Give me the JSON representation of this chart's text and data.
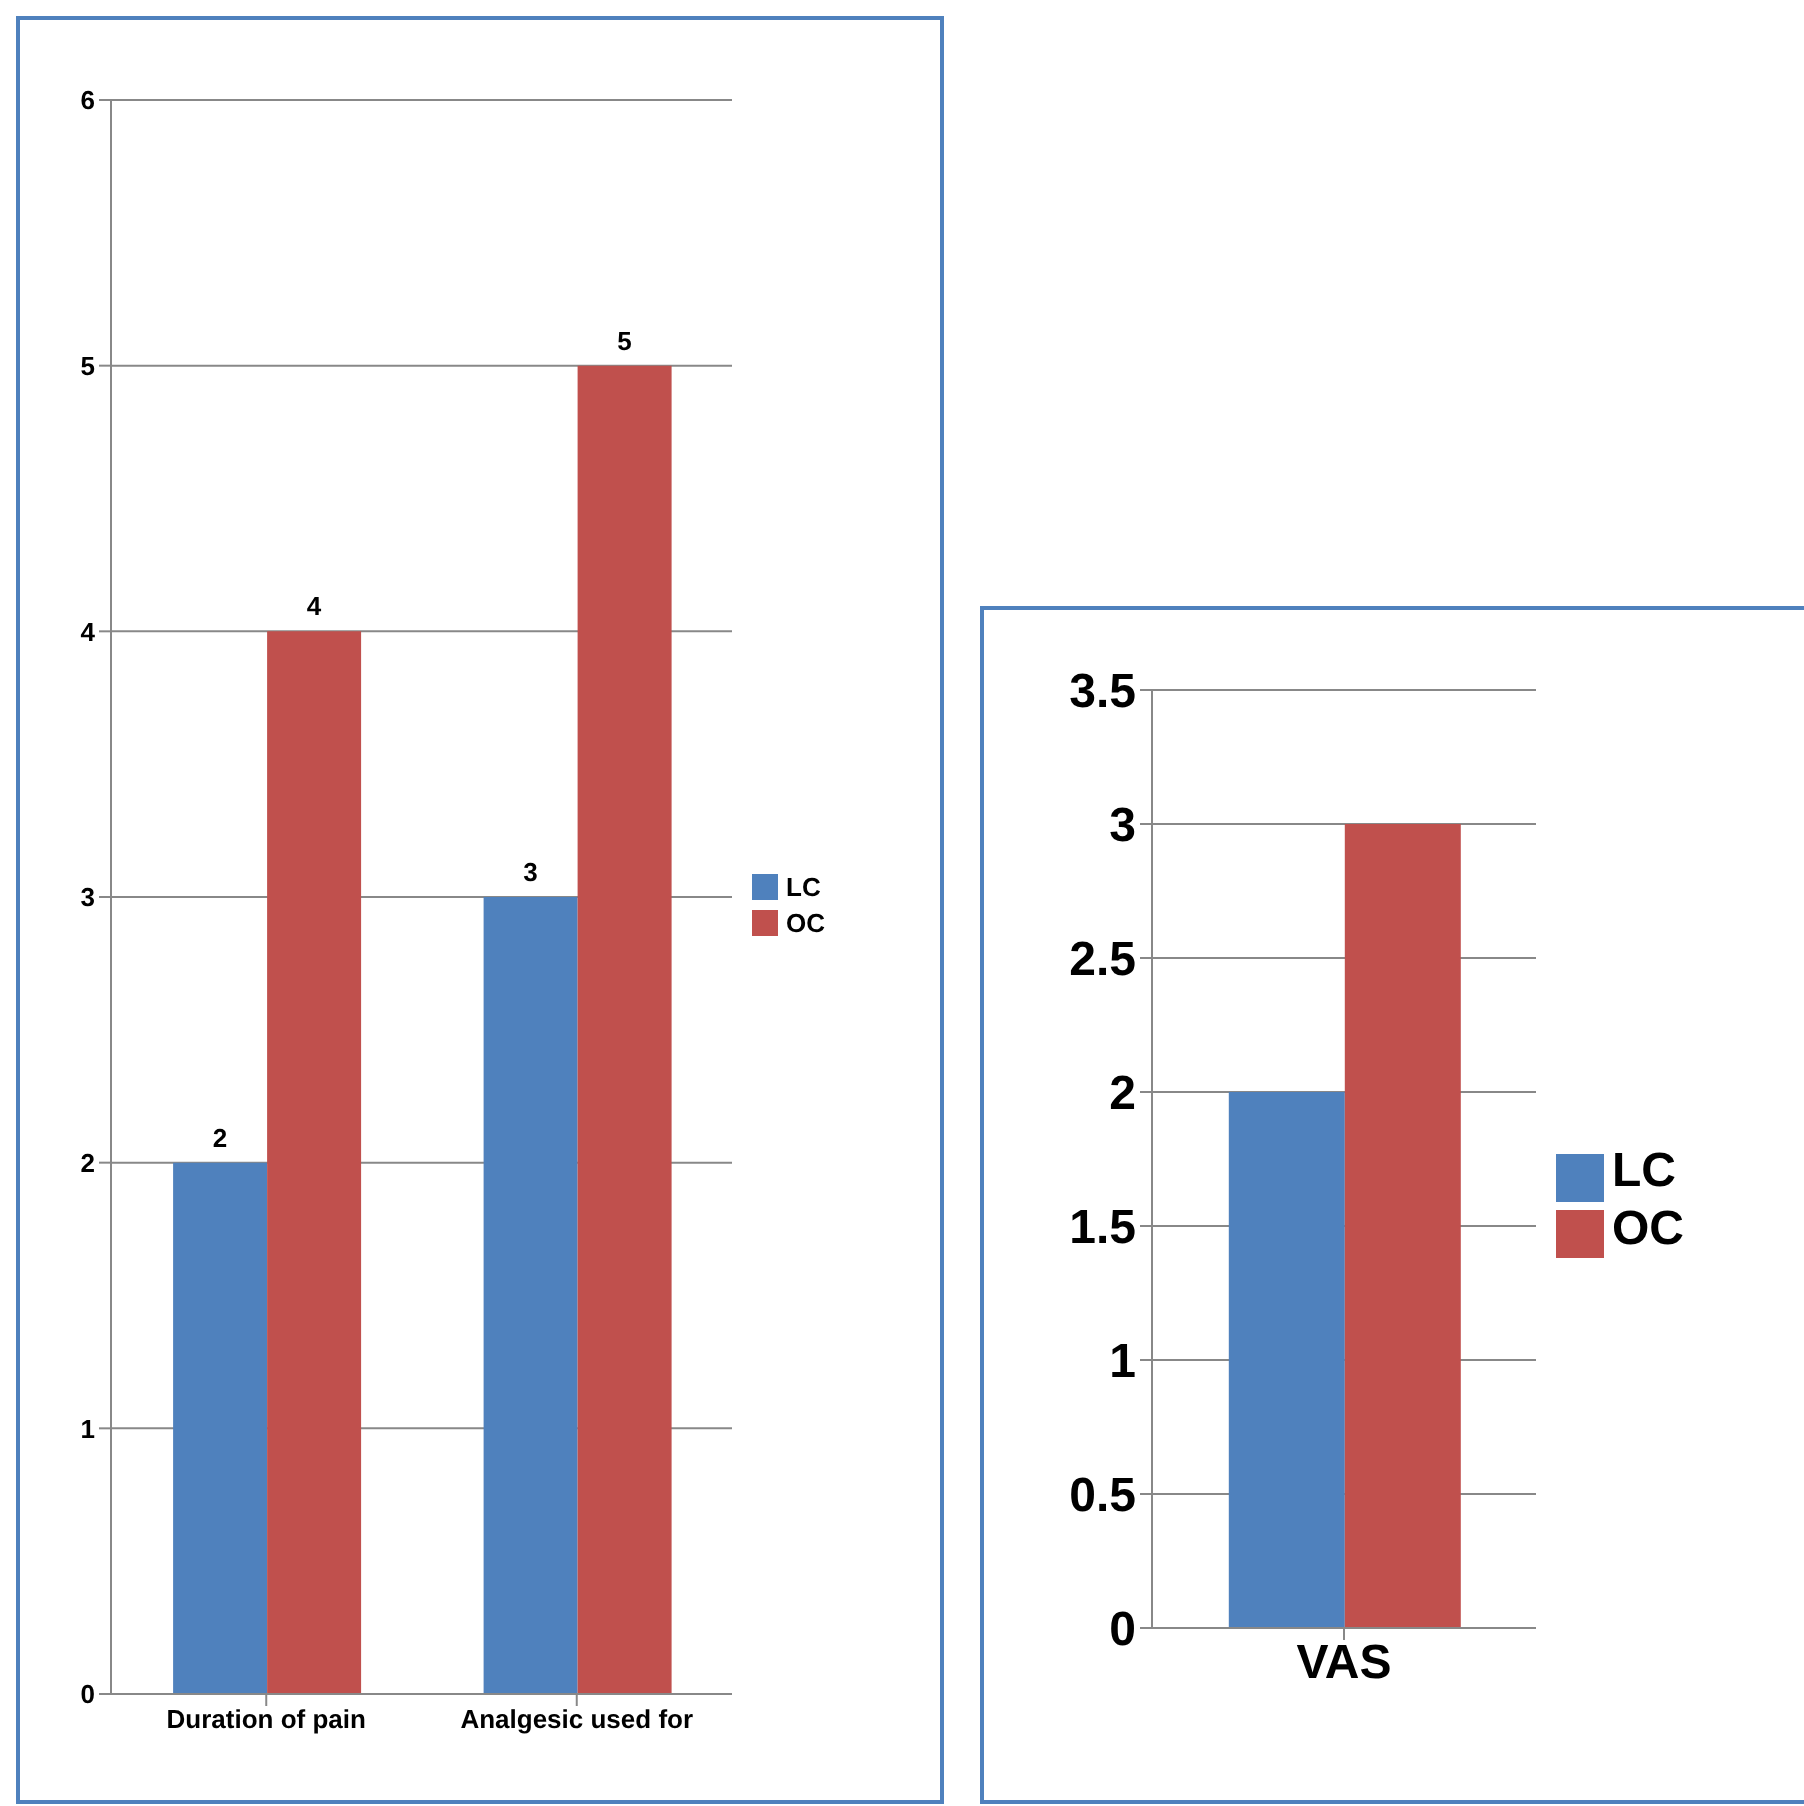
{
  "chart_data": [
    {
      "type": "bar",
      "categories": [
        "Duration of pain",
        "Analgesic used for"
      ],
      "series": [
        {
          "name": "LC",
          "color": "#4f81bd",
          "values": [
            2,
            3
          ]
        },
        {
          "name": "OC",
          "color": "#c0504d",
          "values": [
            4,
            5
          ]
        }
      ],
      "ylim": [
        0,
        6
      ],
      "yticks": [
        0,
        1,
        2,
        3,
        4,
        5,
        6
      ],
      "grid": "y",
      "legend": "right",
      "data_labels": true
    },
    {
      "type": "bar",
      "categories": [
        "VAS"
      ],
      "series": [
        {
          "name": "LC",
          "color": "#4f81bd",
          "values": [
            2
          ]
        },
        {
          "name": "OC",
          "color": "#c0504d",
          "values": [
            3
          ]
        }
      ],
      "ylim": [
        0,
        3.5
      ],
      "yticks": [
        0,
        0.5,
        1,
        1.5,
        2,
        2.5,
        3,
        3.5
      ],
      "grid": "y",
      "legend": "right"
    }
  ]
}
